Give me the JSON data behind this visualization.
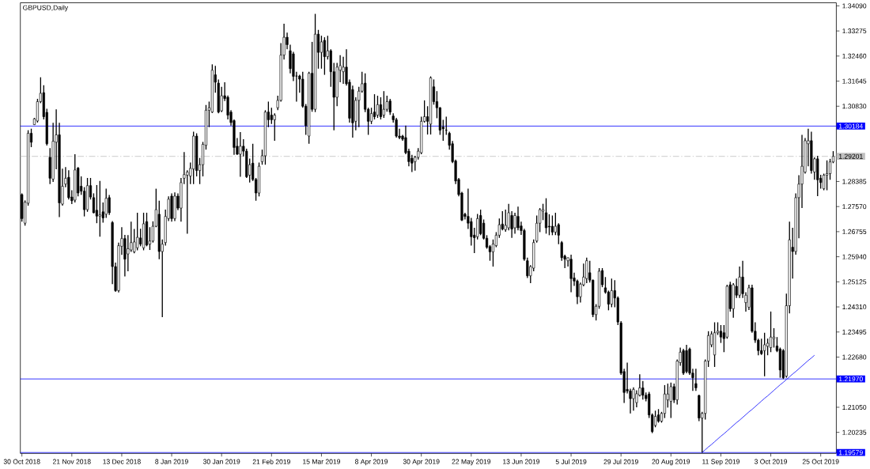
{
  "chart_data": {
    "type": "candlestick",
    "title": "GBPUSD,Daily",
    "categories": [
      "30 Oct 2018",
      null,
      null,
      null,
      null,
      null,
      null,
      null,
      null,
      null,
      null,
      null,
      null,
      null,
      null,
      null,
      "21 Nov 2018",
      null,
      null,
      null,
      null,
      null,
      null,
      null,
      null,
      null,
      null,
      null,
      null,
      null,
      null,
      null,
      "13 Dec 2018",
      null,
      null,
      null,
      null,
      null,
      null,
      null,
      null,
      null,
      null,
      null,
      null,
      null,
      null,
      null,
      "8 Jan 2019",
      null,
      null,
      null,
      null,
      null,
      null,
      null,
      null,
      null,
      null,
      null,
      null,
      null,
      null,
      null,
      "30 Jan 2019",
      null,
      null,
      null,
      null,
      null,
      null,
      null,
      null,
      null,
      null,
      null,
      null,
      null,
      null,
      null,
      "21 Feb 2019",
      null,
      null,
      null,
      null,
      null,
      null,
      null,
      null,
      null,
      null,
      null,
      null,
      null,
      null,
      null,
      "15 Mar 2019",
      null,
      null,
      null,
      null,
      null,
      null,
      null,
      null,
      null,
      null,
      null,
      null,
      null,
      null,
      null,
      "8 Apr 2019",
      null,
      null,
      null,
      null,
      null,
      null,
      null,
      null,
      null,
      null,
      null,
      null,
      null,
      null,
      null,
      "30 Apr 2019",
      null,
      null,
      null,
      null,
      null,
      null,
      null,
      null,
      null,
      null,
      null,
      null,
      null,
      null,
      null,
      "22 May 2019",
      null,
      null,
      null,
      null,
      null,
      null,
      null,
      null,
      null,
      null,
      null,
      null,
      null,
      null,
      null,
      "13 Jun 2019",
      null,
      null,
      null,
      null,
      null,
      null,
      null,
      null,
      null,
      null,
      null,
      null,
      null,
      null,
      null,
      "5 Jul 2019",
      null,
      null,
      null,
      null,
      null,
      null,
      null,
      null,
      null,
      null,
      null,
      null,
      null,
      null,
      null,
      "29 Jul 2019",
      null,
      null,
      null,
      null,
      null,
      null,
      null,
      null,
      null,
      null,
      null,
      null,
      null,
      null,
      null,
      "20 Aug 2019",
      null,
      null,
      null,
      null,
      null,
      null,
      null,
      null,
      null,
      null,
      null,
      null,
      null,
      null,
      null,
      "11 Sep 2019",
      null,
      null,
      null,
      null,
      null,
      null,
      null,
      null,
      null,
      null,
      null,
      null,
      null,
      null,
      null,
      "3 Oct 2019",
      null,
      null,
      null,
      null,
      null,
      null,
      null,
      null,
      null,
      null,
      null,
      null,
      null,
      null,
      null,
      "25 Oct 2019",
      null,
      null,
      null,
      null
    ],
    "ohlc": [
      [
        1.2796,
        1.28,
        1.2708,
        1.2718
      ],
      [
        1.2703,
        1.2777,
        1.2695,
        1.2771
      ],
      [
        1.2768,
        1.3005,
        1.276,
        1.2995
      ],
      [
        1.2995,
        1.301,
        1.295,
        1.2966
      ],
      [
        1.3023,
        1.3045,
        1.3022,
        1.3042
      ],
      [
        1.3035,
        1.3107,
        1.303,
        1.3098
      ],
      [
        1.3098,
        1.3177,
        1.3093,
        1.3125
      ],
      [
        1.3127,
        1.3151,
        1.304,
        1.3049
      ],
      [
        1.3063,
        1.3075,
        1.2955,
        1.2961
      ],
      [
        1.2917,
        1.2947,
        1.283,
        1.2849
      ],
      [
        1.2846,
        1.3029,
        1.2837,
        1.2969
      ],
      [
        1.2966,
        1.3073,
        1.2878,
        1.299
      ],
      [
        1.299,
        1.3029,
        1.2723,
        1.2769
      ],
      [
        1.2765,
        1.288,
        1.276,
        1.2823
      ],
      [
        1.283,
        1.2885,
        1.282,
        1.2849
      ],
      [
        1.2852,
        1.2875,
        1.278,
        1.2786
      ],
      [
        1.2788,
        1.281,
        1.2765,
        1.2776
      ],
      [
        1.2778,
        1.2927,
        1.277,
        1.2876
      ],
      [
        1.2882,
        1.2885,
        1.279,
        1.2801
      ],
      [
        1.2823,
        1.2855,
        1.2795,
        1.2807
      ],
      [
        1.2807,
        1.282,
        1.2725,
        1.2747
      ],
      [
        1.2747,
        1.285,
        1.274,
        1.2825
      ],
      [
        1.2825,
        1.285,
        1.278,
        1.2788
      ],
      [
        1.2786,
        1.28,
        1.2735,
        1.2737
      ],
      [
        1.2745,
        1.2827,
        1.2703,
        1.2726
      ],
      [
        1.2726,
        1.284,
        1.2659,
        1.273
      ],
      [
        1.274,
        1.277,
        1.2705,
        1.272
      ],
      [
        1.2732,
        1.2815,
        1.272,
        1.2784
      ],
      [
        1.2786,
        1.2795,
        1.273,
        1.2737
      ],
      [
        1.2705,
        1.271,
        1.2505,
        1.2562
      ],
      [
        1.2562,
        1.2575,
        1.248,
        1.2484
      ],
      [
        1.2484,
        1.264,
        1.2478,
        1.263
      ],
      [
        1.2628,
        1.269,
        1.26,
        1.2653
      ],
      [
        1.2653,
        1.2665,
        1.253,
        1.2586
      ],
      [
        1.2603,
        1.2664,
        1.2547,
        1.262
      ],
      [
        1.2616,
        1.2708,
        1.261,
        1.264
      ],
      [
        1.261,
        1.2684,
        1.2605,
        1.2642
      ],
      [
        1.2623,
        1.2737,
        1.2615,
        1.2657
      ],
      [
        1.2655,
        1.2685,
        1.2628,
        1.2635
      ],
      [
        1.2623,
        1.2737,
        1.2615,
        1.2701
      ],
      [
        1.2708,
        1.2737,
        1.2628,
        1.2632
      ],
      [
        1.2635,
        1.269,
        1.2616,
        1.2645
      ],
      [
        1.2645,
        1.2709,
        1.264,
        1.2693
      ],
      [
        1.2693,
        1.2815,
        1.269,
        1.2747
      ],
      [
        1.2732,
        1.2776,
        1.2586,
        1.2611
      ],
      [
        1.2611,
        1.265,
        1.2398,
        1.2635
      ],
      [
        1.264,
        1.2747,
        1.263,
        1.2725
      ],
      [
        1.2718,
        1.279,
        1.271,
        1.2781
      ],
      [
        1.2791,
        1.28,
        1.2708,
        1.2718
      ],
      [
        1.2718,
        1.2803,
        1.271,
        1.2791
      ],
      [
        1.2791,
        1.28,
        1.2745,
        1.2752
      ],
      [
        1.2752,
        1.285,
        1.2708,
        1.2835
      ],
      [
        1.2849,
        1.2934,
        1.283,
        1.2861
      ],
      [
        1.2859,
        1.2875,
        1.2669,
        1.2869
      ],
      [
        1.2856,
        1.29,
        1.283,
        1.2881
      ],
      [
        1.2879,
        1.3,
        1.283,
        1.2986
      ],
      [
        1.2986,
        1.2995,
        1.2855,
        1.2874
      ],
      [
        1.2874,
        1.2915,
        1.283,
        1.2893
      ],
      [
        1.2893,
        1.2967,
        1.2855,
        1.2959
      ],
      [
        1.2956,
        1.3087,
        1.2942,
        1.307
      ],
      [
        1.307,
        1.3098,
        1.3015,
        1.3078
      ],
      [
        1.3064,
        1.3219,
        1.3061,
        1.32
      ],
      [
        1.3185,
        1.3214,
        1.3127,
        1.3161
      ],
      [
        1.3158,
        1.317,
        1.306,
        1.3064
      ],
      [
        1.3068,
        1.3146,
        1.3064,
        1.3117
      ],
      [
        1.3117,
        1.3161,
        1.31,
        1.3108
      ],
      [
        1.3112,
        1.3118,
        1.304,
        1.3054
      ],
      [
        1.3064,
        1.307,
        1.302,
        1.303
      ],
      [
        1.3036,
        1.304,
        1.2925,
        1.2949
      ],
      [
        1.2953,
        1.298,
        1.2925,
        1.2927
      ],
      [
        1.2927,
        1.2999,
        1.2854,
        1.2953
      ],
      [
        1.2953,
        1.2976,
        1.292,
        1.2937
      ],
      [
        1.2937,
        1.2945,
        1.285,
        1.2854
      ],
      [
        1.2859,
        1.2913,
        1.2835,
        1.2893
      ],
      [
        1.2898,
        1.2961,
        1.284,
        1.2845
      ],
      [
        1.2845,
        1.285,
        1.2776,
        1.2801
      ],
      [
        1.2801,
        1.29,
        1.279,
        1.2888
      ],
      [
        1.2903,
        1.2942,
        1.2893,
        1.2922
      ],
      [
        1.2922,
        1.307,
        1.2893,
        1.3064
      ],
      [
        1.3064,
        1.3098,
        1.3015,
        1.3039
      ],
      [
        1.3054,
        1.3078,
        1.3025,
        1.3039
      ],
      [
        1.3039,
        1.306,
        1.2971,
        1.3054
      ],
      [
        1.3078,
        1.3117,
        1.307,
        1.3102
      ],
      [
        1.3102,
        1.3288,
        1.3098,
        1.3249
      ],
      [
        1.3249,
        1.3351,
        1.3235,
        1.3307
      ],
      [
        1.3307,
        1.3322,
        1.3268,
        1.3283
      ],
      [
        1.3263,
        1.3283,
        1.319,
        1.3205
      ],
      [
        1.3253,
        1.326,
        1.3165,
        1.318
      ],
      [
        1.3181,
        1.3195,
        1.3098,
        1.3181
      ],
      [
        1.3181,
        1.3185,
        1.3127,
        1.3171
      ],
      [
        1.3171,
        1.3195,
        1.3078,
        1.3083
      ],
      [
        1.3083,
        1.309,
        1.299,
        1.302
      ],
      [
        1.2986,
        1.3195,
        1.2961,
        1.319
      ],
      [
        1.319,
        1.3292,
        1.3065,
        1.3073
      ],
      [
        1.3073,
        1.3383,
        1.3064,
        1.3317
      ],
      [
        1.3317,
        1.3331,
        1.3205,
        1.3258
      ],
      [
        1.3258,
        1.3312,
        1.3205,
        1.3292
      ],
      [
        1.3297,
        1.3307,
        1.3185,
        1.3244
      ],
      [
        1.3244,
        1.3312,
        1.3235,
        1.3263
      ],
      [
        1.3263,
        1.3268,
        1.3146,
        1.3195
      ],
      [
        1.3195,
        1.3224,
        1.3005,
        1.3112
      ],
      [
        1.3112,
        1.3224,
        1.3083,
        1.321
      ],
      [
        1.32,
        1.3249,
        1.3161,
        1.3215
      ],
      [
        1.3195,
        1.3244,
        1.3156,
        1.321
      ],
      [
        1.321,
        1.3268,
        1.315,
        1.3156
      ],
      [
        1.3161,
        1.317,
        1.303,
        1.3044
      ],
      [
        1.3137,
        1.315,
        1.2981,
        1.3029
      ],
      [
        1.3034,
        1.3112,
        1.3005,
        1.3102
      ],
      [
        1.3102,
        1.3146,
        1.3015,
        1.3132
      ],
      [
        1.3132,
        1.3195,
        1.3127,
        1.3156
      ],
      [
        1.3158,
        1.319,
        1.3064,
        1.3073
      ],
      [
        1.3073,
        1.3078,
        1.299,
        1.3034
      ],
      [
        1.3034,
        1.3078,
        1.3025,
        1.3059
      ],
      [
        1.3064,
        1.3122,
        1.304,
        1.3049
      ],
      [
        1.3054,
        1.3117,
        1.3045,
        1.3088
      ],
      [
        1.3088,
        1.3112,
        1.304,
        1.3049
      ],
      [
        1.3054,
        1.3132,
        1.3045,
        1.3073
      ],
      [
        1.3073,
        1.3117,
        1.3065,
        1.3098
      ],
      [
        1.31,
        1.3107,
        1.3055,
        1.3064
      ],
      [
        1.3051,
        1.306,
        1.303,
        1.3039
      ],
      [
        1.3039,
        1.3045,
        1.2981,
        1.2986
      ],
      [
        1.2986,
        1.301,
        1.2976,
        1.2981
      ],
      [
        1.2986,
        1.299,
        1.2971,
        1.2976
      ],
      [
        1.2981,
        1.302,
        1.2927,
        1.2932
      ],
      [
        1.2937,
        1.2945,
        1.2888,
        1.2903
      ],
      [
        1.2914,
        1.2925,
        1.2869,
        1.2898
      ],
      [
        1.2903,
        1.2922,
        1.2874,
        1.2917
      ],
      [
        1.2917,
        1.2947,
        1.291,
        1.2937
      ],
      [
        1.2932,
        1.3049,
        1.2927,
        1.3034
      ],
      [
        1.3034,
        1.3102,
        1.303,
        1.3049
      ],
      [
        1.3049,
        1.3083,
        1.2991,
        1.3034
      ],
      [
        1.3025,
        1.318,
        1.2991,
        1.3175
      ],
      [
        1.3146,
        1.317,
        1.3088,
        1.3098
      ],
      [
        1.3098,
        1.3132,
        1.3044,
        1.3078
      ],
      [
        1.3078,
        1.308,
        1.299,
        1.3005
      ],
      [
        1.3015,
        1.3039,
        1.2971,
        1.301
      ],
      [
        1.3005,
        1.3049,
        1.299,
        1.3005
      ],
      [
        1.2995,
        1.3,
        1.2942,
        1.2956
      ],
      [
        1.2961,
        1.297,
        1.2898,
        1.2903
      ],
      [
        1.2905,
        1.291,
        1.283,
        1.284
      ],
      [
        1.2845,
        1.285,
        1.279,
        1.2796
      ],
      [
        1.2801,
        1.2805,
        1.271,
        1.2713
      ],
      [
        1.2732,
        1.2737,
        1.2715,
        1.2725
      ],
      [
        1.2725,
        1.2815,
        1.2684,
        1.2703
      ],
      [
        1.2708,
        1.272,
        1.263,
        1.2659
      ],
      [
        1.2664,
        1.2688,
        1.2606,
        1.2656
      ],
      [
        1.2659,
        1.2733,
        1.265,
        1.2718
      ],
      [
        1.2728,
        1.2747,
        1.2664,
        1.2669
      ],
      [
        1.2703,
        1.2715,
        1.265,
        1.2654
      ],
      [
        1.2654,
        1.2664,
        1.262,
        1.2625
      ],
      [
        1.2627,
        1.2632,
        1.2581,
        1.261
      ],
      [
        1.261,
        1.265,
        1.2562,
        1.2635
      ],
      [
        1.263,
        1.2674,
        1.2625,
        1.2664
      ],
      [
        1.2664,
        1.2718,
        1.2655,
        1.2698
      ],
      [
        1.27,
        1.2742,
        1.268,
        1.2684
      ],
      [
        1.2682,
        1.2747,
        1.2675,
        1.2696
      ],
      [
        1.2688,
        1.2766,
        1.268,
        1.2737
      ],
      [
        1.2728,
        1.2742,
        1.2655,
        1.2684
      ],
      [
        1.2688,
        1.2737,
        1.2669,
        1.2728
      ],
      [
        1.2725,
        1.2757,
        1.268,
        1.2688
      ],
      [
        1.2694,
        1.2708,
        1.2665,
        1.2679
      ],
      [
        1.2679,
        1.2685,
        1.2581,
        1.2586
      ],
      [
        1.2581,
        1.2591,
        1.2525,
        1.2532
      ],
      [
        1.2532,
        1.2567,
        1.2508,
        1.2562
      ],
      [
        1.2557,
        1.265,
        1.2547,
        1.264
      ],
      [
        1.2645,
        1.2728,
        1.264,
        1.2703
      ],
      [
        1.2703,
        1.2752,
        1.2674,
        1.2747
      ],
      [
        1.2742,
        1.2766,
        1.2713,
        1.2747
      ],
      [
        1.2737,
        1.2784,
        1.2669,
        1.2688
      ],
      [
        1.2693,
        1.2732,
        1.2664,
        1.2691
      ],
      [
        1.2693,
        1.2728,
        1.2664,
        1.2674
      ],
      [
        1.2674,
        1.2737,
        1.2664,
        1.2693
      ],
      [
        1.2698,
        1.2703,
        1.2635,
        1.2664
      ],
      [
        1.264,
        1.2645,
        1.2581,
        1.2591
      ],
      [
        1.2596,
        1.2601,
        1.2557,
        1.2586
      ],
      [
        1.2581,
        1.2591,
        1.2562,
        1.2591
      ],
      [
        1.2586,
        1.2601,
        1.2479,
        1.2523
      ],
      [
        1.2525,
        1.2542,
        1.2499,
        1.2515
      ],
      [
        1.2515,
        1.252,
        1.244,
        1.2464
      ],
      [
        1.2464,
        1.251,
        1.2445,
        1.2505
      ],
      [
        1.2503,
        1.2572,
        1.2498,
        1.2528
      ],
      [
        1.2523,
        1.2591,
        1.2508,
        1.2581
      ],
      [
        1.2542,
        1.2581,
        1.251,
        1.2518
      ],
      [
        1.2518,
        1.252,
        1.2398,
        1.2406
      ],
      [
        1.2406,
        1.244,
        1.2387,
        1.2433
      ],
      [
        1.2433,
        1.2557,
        1.2425,
        1.2547
      ],
      [
        1.2549,
        1.2557,
        1.2495,
        1.2503
      ],
      [
        1.2493,
        1.2528,
        1.2474,
        1.2479
      ],
      [
        1.2479,
        1.2484,
        1.242,
        1.244
      ],
      [
        1.244,
        1.2523,
        1.243,
        1.2484
      ],
      [
        1.2484,
        1.2518,
        1.243,
        1.246
      ],
      [
        1.246,
        1.2465,
        1.2372,
        1.2382
      ],
      [
        1.2379,
        1.2385,
        1.221,
        1.2216
      ],
      [
        1.2221,
        1.223,
        1.2119,
        1.2153
      ],
      [
        1.2163,
        1.225,
        1.215,
        1.2158
      ],
      [
        1.2158,
        1.2165,
        1.2085,
        1.2133
      ],
      [
        1.2133,
        1.217,
        1.2094,
        1.2163
      ],
      [
        1.212,
        1.216,
        1.2105,
        1.2149
      ],
      [
        1.2144,
        1.2212,
        1.214,
        1.2168
      ],
      [
        1.2168,
        1.219,
        1.213,
        1.2144
      ],
      [
        1.2144,
        1.2153,
        1.2124,
        1.2133
      ],
      [
        1.2148,
        1.2155,
        1.207,
        1.208
      ],
      [
        1.208,
        1.2085,
        1.2021,
        1.2026
      ],
      [
        1.2046,
        1.2094,
        1.204,
        1.2075
      ],
      [
        1.208,
        1.2099,
        1.2055,
        1.206
      ],
      [
        1.206,
        1.209,
        1.2055,
        1.2085
      ],
      [
        1.2085,
        1.2177,
        1.207,
        1.2148
      ],
      [
        1.2129,
        1.2182,
        1.2104,
        1.2148
      ],
      [
        1.2124,
        1.2185,
        1.207,
        1.2172
      ],
      [
        1.2172,
        1.2182,
        1.2119,
        1.2129
      ],
      [
        1.2129,
        1.226,
        1.2114,
        1.2255
      ],
      [
        1.225,
        1.2299,
        1.224,
        1.2284
      ],
      [
        1.2289,
        1.2295,
        1.221,
        1.2216
      ],
      [
        1.2289,
        1.2308,
        1.2215,
        1.2221
      ],
      [
        1.2294,
        1.2299,
        1.221,
        1.2216
      ],
      [
        1.2216,
        1.223,
        1.2158,
        1.2201
      ],
      [
        1.2182,
        1.223,
        1.2158,
        1.2168
      ],
      [
        1.2143,
        1.2146,
        1.206,
        1.207
      ],
      [
        1.207,
        1.209,
        1.1958,
        1.2085
      ],
      [
        1.2085,
        1.226,
        1.2065,
        1.2255
      ],
      [
        1.2255,
        1.2352,
        1.2236,
        1.2338
      ],
      [
        1.2308,
        1.2352,
        1.23,
        1.2343
      ],
      [
        1.2275,
        1.2381,
        1.2236,
        1.2347
      ],
      [
        1.2347,
        1.2381,
        1.234,
        1.2352
      ],
      [
        1.2352,
        1.2372,
        1.2314,
        1.2333
      ],
      [
        1.2347,
        1.2372,
        1.2284,
        1.2328
      ],
      [
        1.2333,
        1.2503,
        1.2328,
        1.2498
      ],
      [
        1.2503,
        1.2513,
        1.2416,
        1.2425
      ],
      [
        1.2425,
        1.2508,
        1.2396,
        1.2503
      ],
      [
        1.2498,
        1.2523,
        1.246,
        1.2469
      ],
      [
        1.2469,
        1.2562,
        1.246,
        1.2528
      ],
      [
        1.2528,
        1.2581,
        1.246,
        1.2474
      ],
      [
        1.2445,
        1.2479,
        1.2416,
        1.2469
      ],
      [
        1.243,
        1.2503,
        1.2421,
        1.2493
      ],
      [
        1.2493,
        1.2503,
        1.2347,
        1.2352
      ],
      [
        1.2352,
        1.2381,
        1.2314,
        1.2323
      ],
      [
        1.2323,
        1.2328,
        1.2274,
        1.2289
      ],
      [
        1.2289,
        1.2328,
        1.2275,
        1.2279
      ],
      [
        1.2289,
        1.2347,
        1.2206,
        1.2308
      ],
      [
        1.2303,
        1.2328,
        1.2274,
        1.2313
      ],
      [
        1.2299,
        1.2416,
        1.2284,
        1.2333
      ],
      [
        1.2328,
        1.2362,
        1.2299,
        1.2333
      ],
      [
        1.2304,
        1.2333,
        1.2284,
        1.2289
      ],
      [
        1.2294,
        1.2299,
        1.2201,
        1.2226
      ],
      [
        1.2289,
        1.2294,
        1.2197,
        1.2201
      ],
      [
        1.2206,
        1.2474,
        1.2201,
        1.2435
      ],
      [
        1.2435,
        1.2708,
        1.241,
        1.2649
      ],
      [
        1.2625,
        1.2688,
        1.2523,
        1.2611
      ],
      [
        1.2611,
        1.28,
        1.2601,
        1.2786
      ],
      [
        1.2786,
        1.2859,
        1.2654,
        1.283
      ],
      [
        1.283,
        1.299,
        1.2752,
        1.2888
      ],
      [
        1.2869,
        1.298,
        1.2864,
        1.2971
      ],
      [
        1.2961,
        1.301,
        1.2888,
        1.2971
      ],
      [
        1.2971,
        1.3,
        1.2864,
        1.2874
      ],
      [
        1.2869,
        1.2917,
        1.2844,
        1.2912
      ],
      [
        1.2912,
        1.2922,
        1.2791,
        1.2844
      ],
      [
        1.2849,
        1.286,
        1.2815,
        1.2835
      ],
      [
        1.2815,
        1.2864,
        1.281,
        1.2859
      ],
      [
        1.2859,
        1.2907,
        1.281,
        1.2864
      ],
      [
        1.2864,
        1.2912,
        1.2844,
        1.2902
      ],
      [
        1.2902,
        1.2937,
        1.2898,
        1.292
      ]
    ],
    "series": [
      {
        "type": "line",
        "color": "#0000ff",
        "values": [
          null,
          null,
          null,
          null,
          null,
          null,
          null,
          null,
          null,
          null,
          null,
          null,
          null,
          null,
          null,
          null,
          null,
          null,
          null,
          null,
          null,
          null,
          null,
          null,
          null,
          null,
          null,
          null,
          null,
          null,
          null,
          null,
          null,
          null,
          null,
          null,
          null,
          null,
          null,
          null,
          null,
          null,
          null,
          null,
          null,
          null,
          null,
          null,
          null,
          null,
          null,
          null,
          null,
          null,
          null,
          null,
          null,
          null,
          null,
          null,
          null,
          null,
          null,
          null,
          null,
          null,
          null,
          null,
          null,
          null,
          null,
          null,
          null,
          null,
          null,
          null,
          null,
          null,
          null,
          null,
          null,
          null,
          null,
          null,
          null,
          null,
          null,
          null,
          null,
          null,
          null,
          null,
          null,
          null,
          null,
          null,
          null,
          null,
          null,
          null,
          null,
          null,
          null,
          null,
          null,
          null,
          null,
          null,
          null,
          null,
          null,
          null,
          null,
          null,
          null,
          null,
          null,
          null,
          null,
          null,
          null,
          null,
          null,
          null,
          null,
          null,
          null,
          null,
          null,
          null,
          null,
          null,
          null,
          null,
          null,
          null,
          null,
          null,
          null,
          null,
          null,
          null,
          null,
          null,
          null,
          null,
          null,
          null,
          null,
          null,
          null,
          null,
          null,
          null,
          null,
          null,
          null,
          null,
          null,
          null,
          null,
          null,
          null,
          null,
          null,
          null,
          null,
          null,
          null,
          null,
          null,
          null,
          null,
          null,
          null,
          null,
          null,
          null,
          null,
          null,
          null,
          null,
          null,
          null,
          null,
          null,
          null,
          null,
          null,
          null,
          null,
          null,
          null,
          null,
          null,
          null,
          null,
          null,
          null,
          null,
          null,
          null,
          null,
          null,
          null,
          null,
          null,
          null,
          null,
          null,
          null,
          null,
          null,
          null,
          null,
          null,
          null,
          null,
          1.1958,
          1.1967,
          1.1976,
          1.1984,
          1.1993,
          1.2002,
          1.2011,
          1.2019,
          1.2028,
          1.2037,
          1.2046,
          1.2055,
          1.2063,
          1.2072,
          1.2081,
          1.209,
          1.2098,
          1.2107,
          1.2116,
          1.2125,
          1.2134,
          1.2142,
          1.2151,
          1.216,
          1.2169,
          1.2178,
          1.2186,
          1.2195,
          1.2204,
          1.2213,
          1.2221,
          1.223,
          1.2239,
          1.2248,
          1.2257,
          1.2265,
          1.2274,
          null,
          null,
          null,
          null,
          null,
          null
        ]
      }
    ],
    "ref_lines": [
      {
        "axis": "y",
        "value": 1.30184,
        "label": "1.30184",
        "color": "#0000ff"
      },
      {
        "axis": "y",
        "value": 1.29201,
        "label": "1.29201",
        "color": "#c0c0c0",
        "line_style": "dashed"
      },
      {
        "axis": "y",
        "value": 1.2197,
        "label": "1.21970",
        "color": "#0000ff"
      },
      {
        "axis": "y",
        "value": 1.19579,
        "label": "1.19579",
        "color": "#0000ff"
      }
    ],
    "ylim": [
      1.1955,
      1.3419
    ],
    "yticks": [
      {
        "value": 1.3409,
        "label": "1.34090"
      },
      {
        "value": 1.33275,
        "label": "1.33275"
      },
      {
        "value": 1.3246,
        "label": "1.32460"
      },
      {
        "value": 1.31645,
        "label": "1.31645"
      },
      {
        "value": 1.3083,
        "label": "1.30830"
      },
      {
        "value": 1.28385,
        "label": "1.28385"
      },
      {
        "value": 1.2757,
        "label": "1.27570"
      },
      {
        "value": 1.26755,
        "label": "1.26755"
      },
      {
        "value": 1.2594,
        "label": "1.25940"
      },
      {
        "value": 1.25125,
        "label": "1.25125"
      },
      {
        "value": 1.2431,
        "label": "1.24310"
      },
      {
        "value": 1.23495,
        "label": "1.23495"
      },
      {
        "value": 1.2268,
        "label": "1.22680"
      },
      {
        "value": 1.2105,
        "label": "1.21050"
      },
      {
        "value": 1.20235,
        "label": "1.20235"
      }
    ],
    "grid": false
  }
}
